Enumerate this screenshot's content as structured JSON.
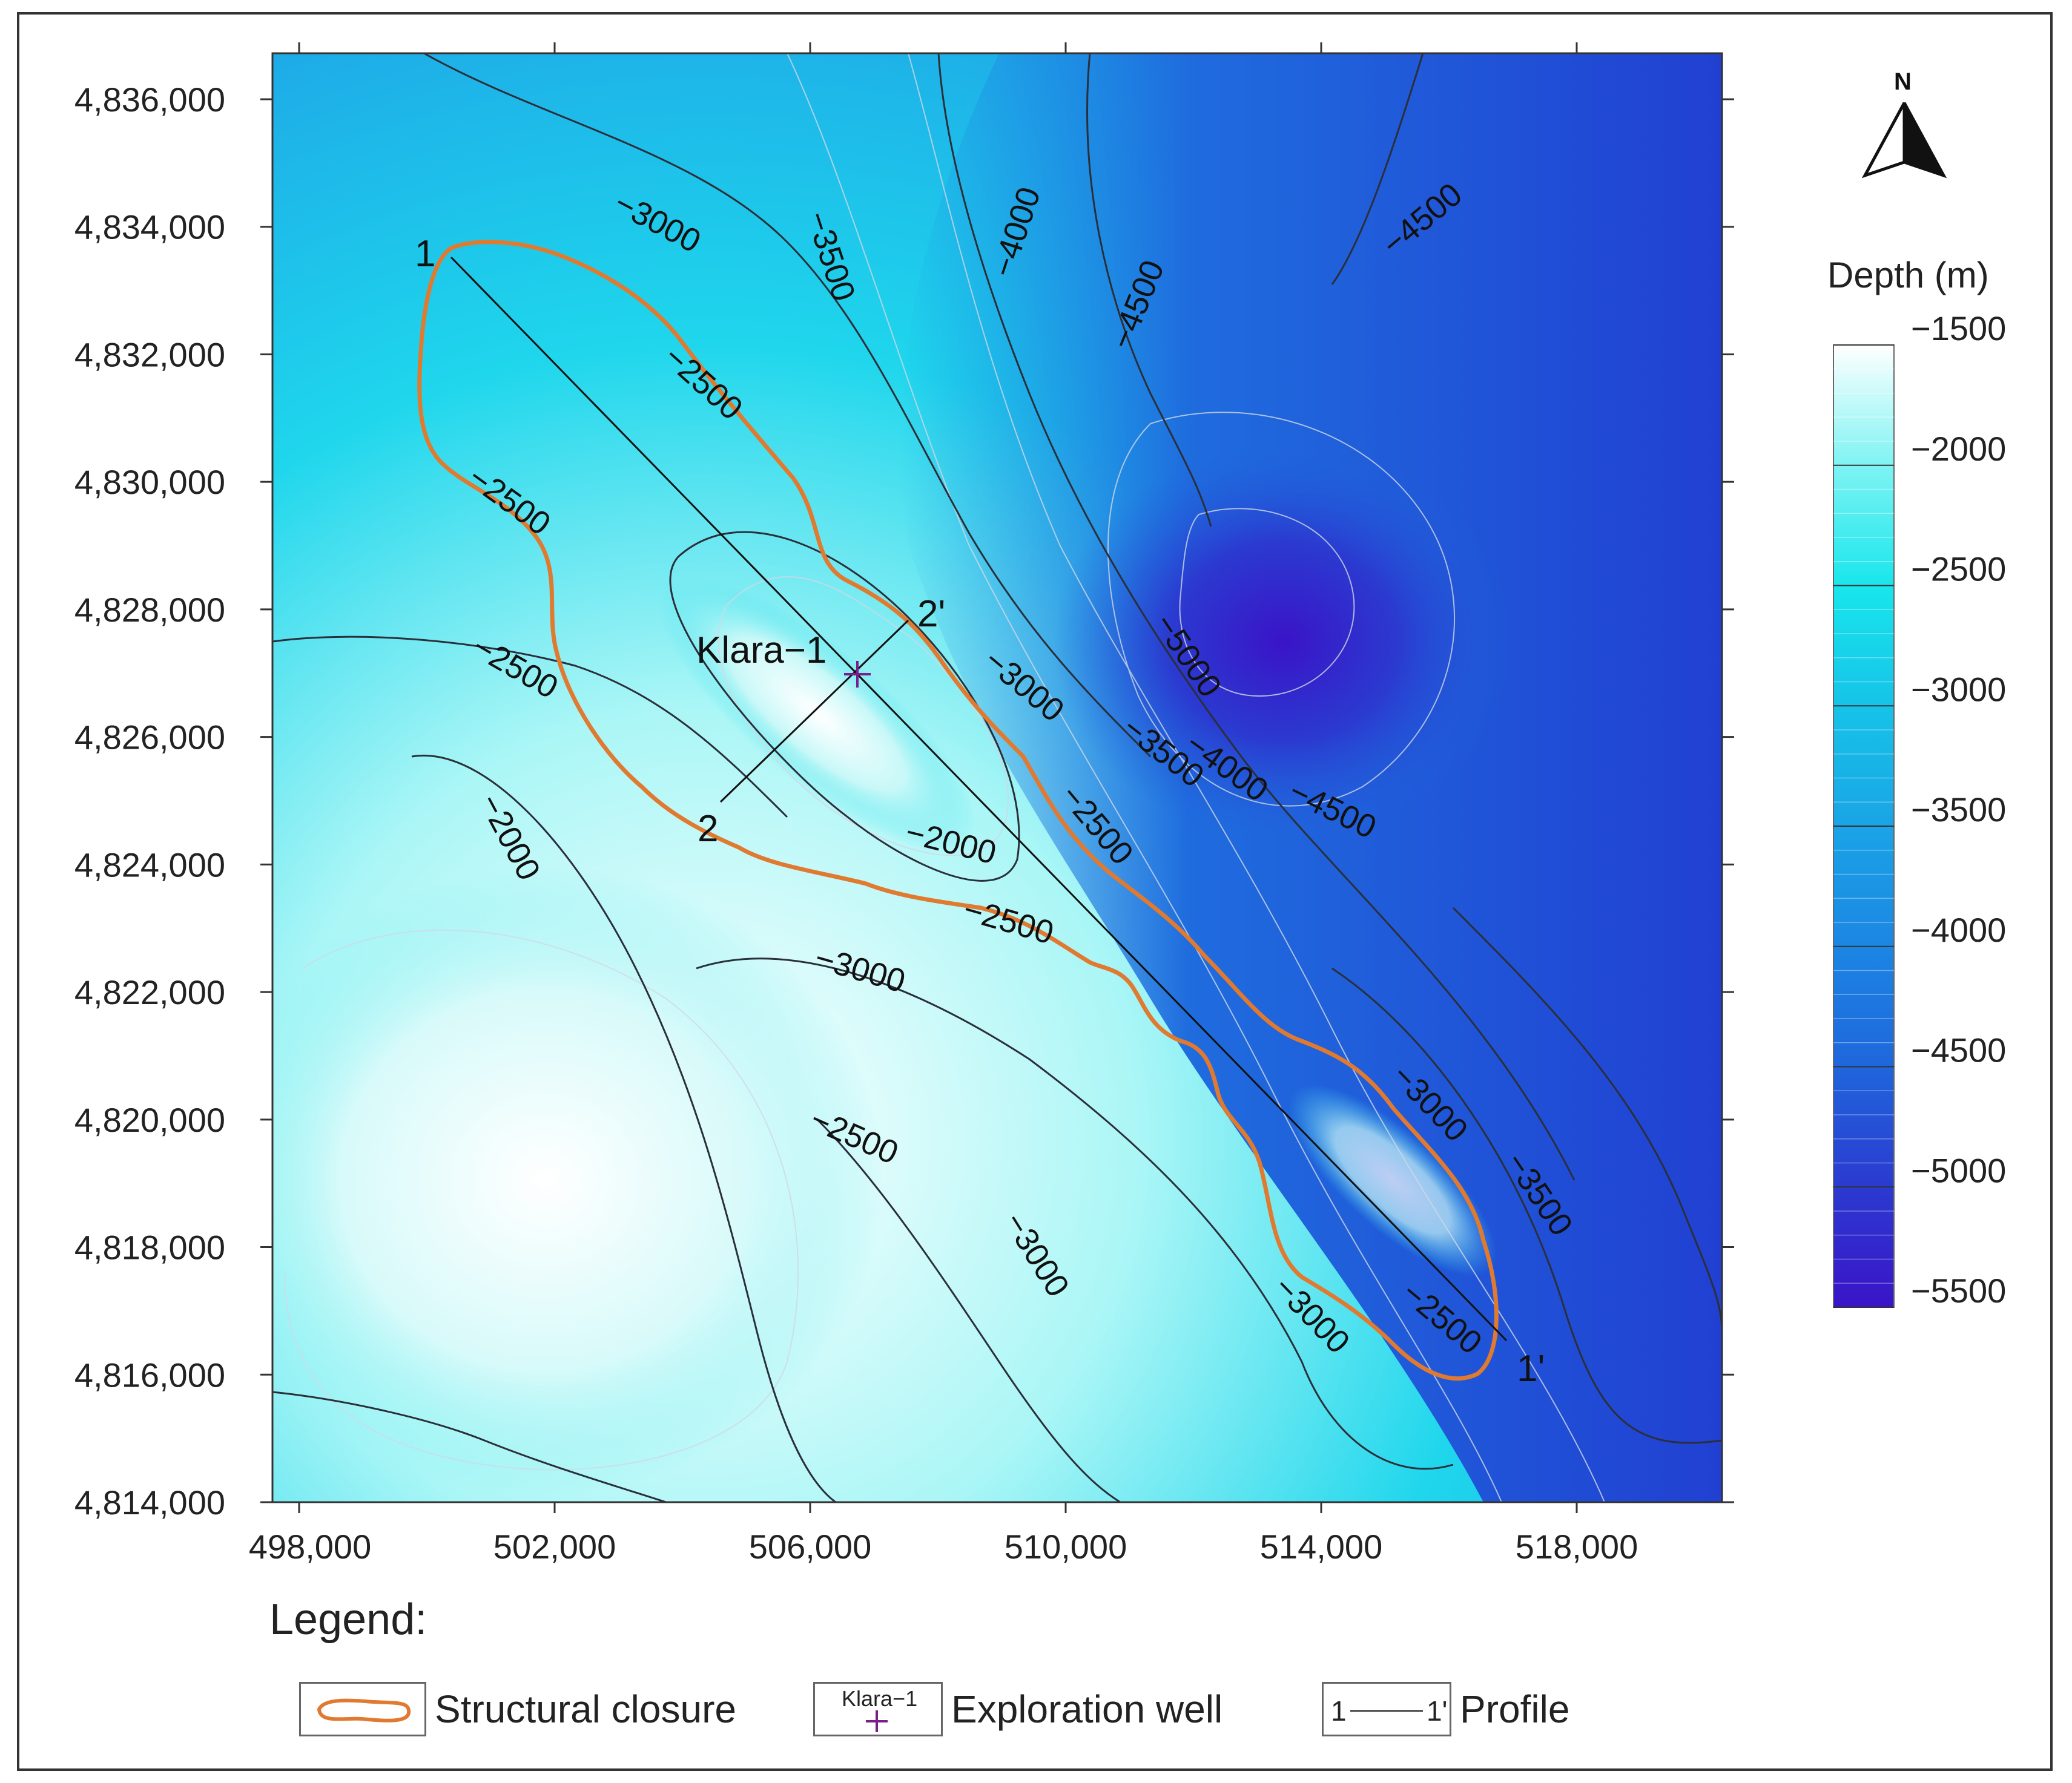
{
  "map": {
    "x_ticks": [
      "498,000",
      "502,000",
      "506,000",
      "510,000",
      "514,000",
      "518,000"
    ],
    "y_ticks": [
      "4,836,000",
      "4,834,000",
      "4,832,000",
      "4,830,000",
      "4,828,000",
      "4,826,000",
      "4,824,000",
      "4,822,000",
      "4,820,000",
      "4,818,000",
      "4,816,000",
      "4,814,000"
    ],
    "contour_labels": [
      {
        "text": "-3000"
      },
      {
        "text": "-3500"
      },
      {
        "text": "-4000"
      },
      {
        "text": "-4500"
      },
      {
        "text": "-4500"
      },
      {
        "text": "-2500"
      },
      {
        "text": "-2500"
      },
      {
        "text": "-2500"
      },
      {
        "text": "-2000"
      },
      {
        "text": "-2000"
      },
      {
        "text": "-3000"
      },
      {
        "text": "-5000"
      },
      {
        "text": "-3500"
      },
      {
        "text": "-4000"
      },
      {
        "text": "-4500"
      },
      {
        "text": "-2500"
      },
      {
        "text": "-2500"
      },
      {
        "text": "-3000"
      },
      {
        "text": "-2500"
      },
      {
        "text": "-3000"
      },
      {
        "text": "-3000"
      },
      {
        "text": "-3500"
      },
      {
        "text": "-3000"
      },
      {
        "text": "-2500"
      }
    ],
    "well": {
      "name": "Klara−1"
    },
    "profiles": [
      {
        "start_label": "1",
        "end_label": "1'"
      },
      {
        "start_label": "2",
        "end_label": "2'"
      }
    ],
    "north_label": "N"
  },
  "colorbar": {
    "title": "Depth (m)",
    "tick_labels": [
      "−1500",
      "−2000",
      "−2500",
      "−3000",
      "−3500",
      "−4000",
      "−4500",
      "−5000",
      "−5500"
    ],
    "colors": [
      "#ffffff",
      "#7ff3f3",
      "#18e6ec",
      "#16c3e8",
      "#1aa4e6",
      "#1c86e3",
      "#1f66dc",
      "#2b3ad0",
      "#3a14c7"
    ]
  },
  "legend": {
    "title": "Legend:",
    "items": [
      {
        "label": "Structural closure",
        "color": "#e07a30"
      },
      {
        "label": "Exploration well",
        "sample_text": "Klara−1",
        "color": "#7a1f8a"
      },
      {
        "label": "Profile",
        "sample_start": "1",
        "sample_end": "1'"
      }
    ]
  }
}
